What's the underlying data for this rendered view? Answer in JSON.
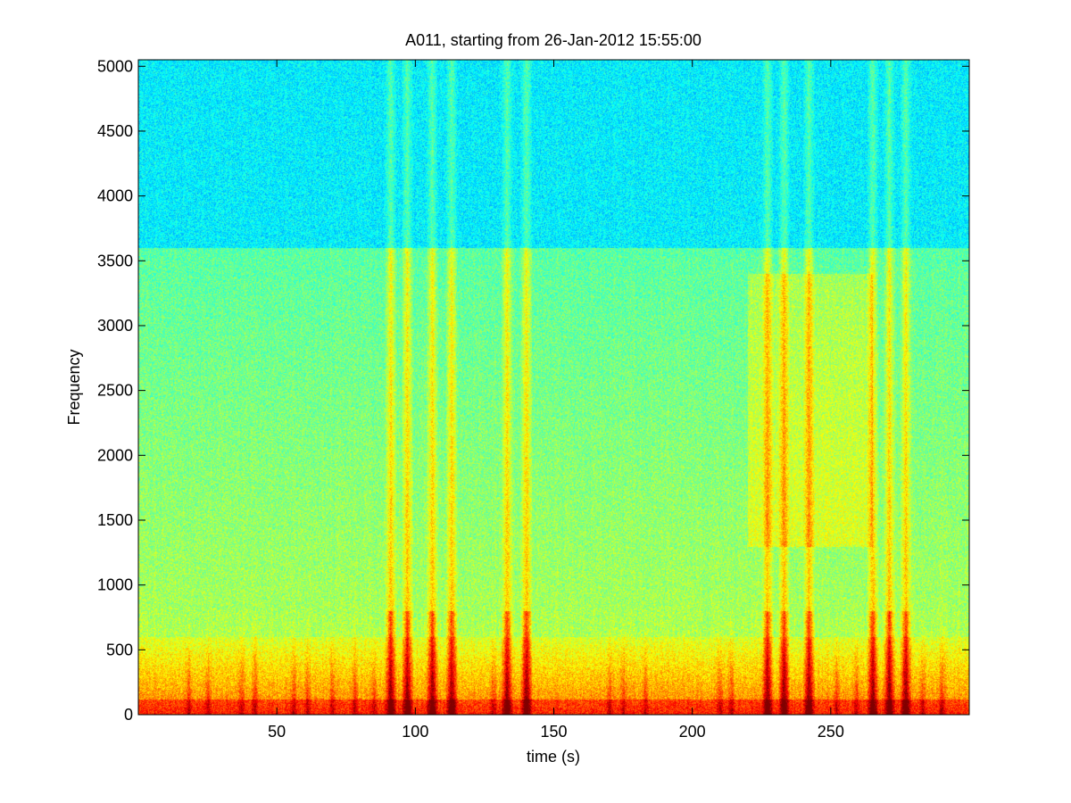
{
  "chart_data": {
    "type": "heatmap",
    "title": "A011, starting from 26-Jan-2012 15:55:00",
    "xlabel": "time (s)",
    "ylabel": "Frequency",
    "xlim": [
      0,
      300
    ],
    "ylim": [
      0,
      5050
    ],
    "xticks": [
      50,
      100,
      150,
      200,
      250
    ],
    "xtick_labels": [
      "50",
      "100",
      "150",
      "200",
      "250"
    ],
    "yticks": [
      0,
      500,
      1000,
      1500,
      2000,
      2500,
      3000,
      3500,
      4000,
      4500,
      5000
    ],
    "ytick_labels": [
      "0",
      "500",
      "1000",
      "1500",
      "2000",
      "2500",
      "3000",
      "3500",
      "4000",
      "4500",
      "5000"
    ],
    "grid": false,
    "colormap": "jet",
    "levels": {
      "min_color": "#00008f",
      "max_color": "#800000",
      "high_freq_band": {
        "freq_range": [
          3600,
          5050
        ],
        "color": "#22c4e8"
      },
      "mid_freq_band": {
        "freq_range": [
          1000,
          3600
        ],
        "color": "#4fd8a8"
      },
      "low_freq_band": {
        "freq_range": [
          0,
          600
        ],
        "color": "#ff3a10"
      }
    },
    "broadband_events_s": [
      91,
      97,
      106,
      113,
      133,
      140,
      227,
      233,
      242,
      265,
      271,
      277
    ],
    "low_freq_bursts_s": [
      18,
      25,
      37,
      42,
      56,
      61,
      70,
      78,
      85,
      128,
      170,
      175,
      183,
      210,
      214,
      252,
      259,
      283,
      290
    ]
  }
}
